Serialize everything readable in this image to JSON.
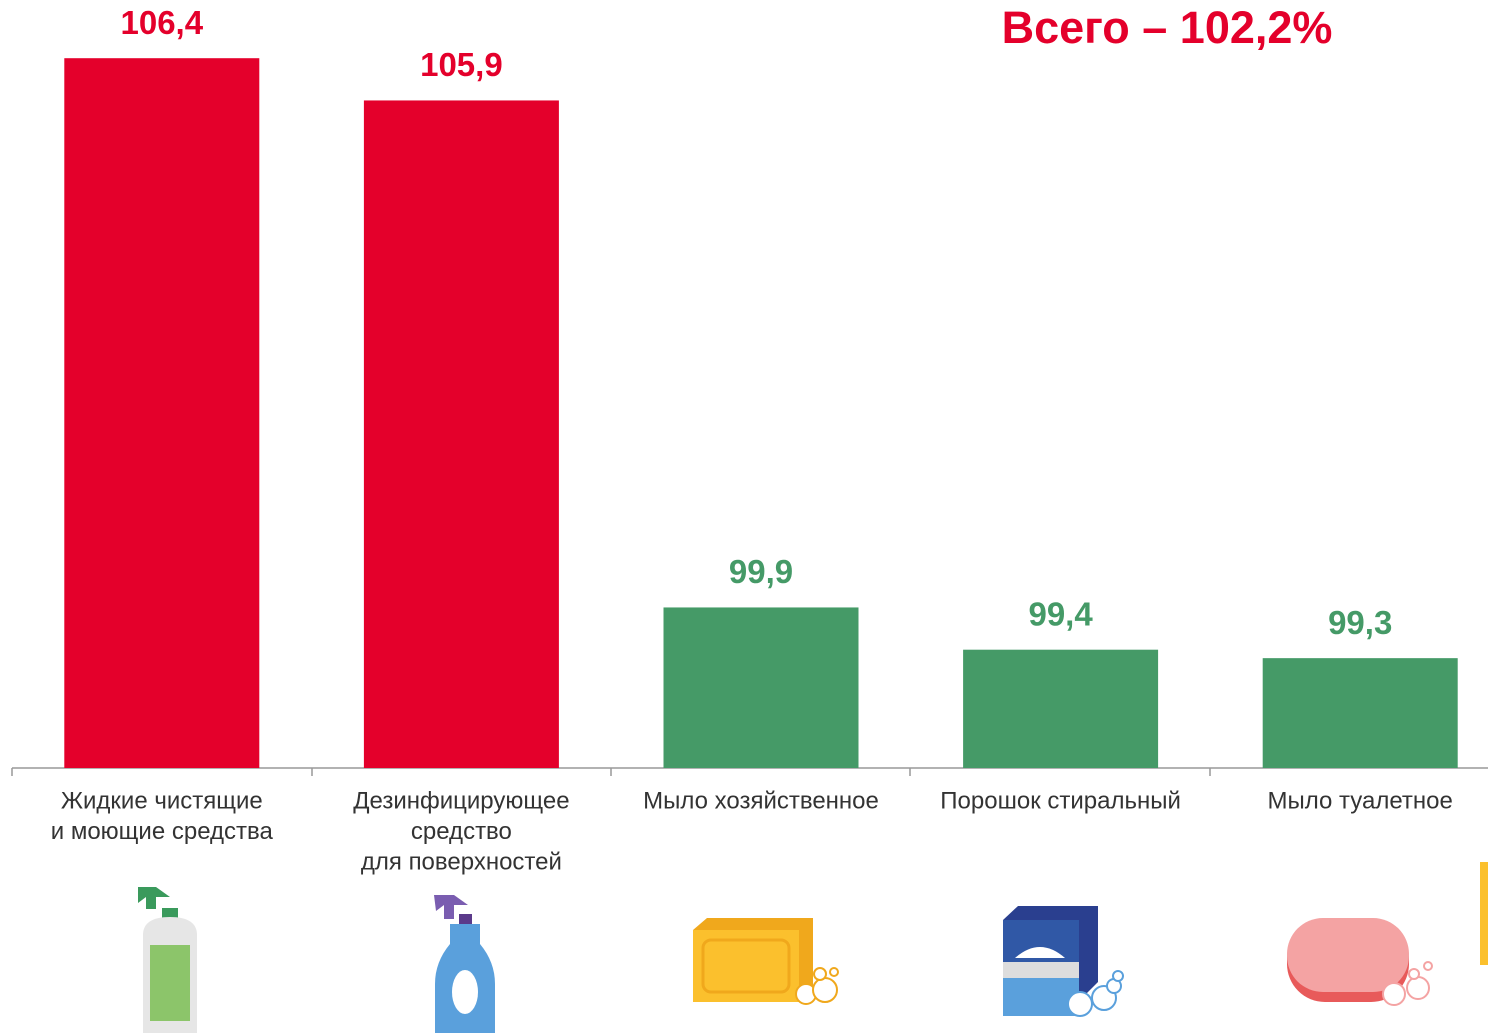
{
  "chart_data": {
    "type": "bar",
    "title": "Всего – 102,2%",
    "categories": [
      [
        "Жидкие чистящие",
        "и моющие средства"
      ],
      [
        "Дезинфицирующее",
        "средство",
        "для поверхностей"
      ],
      [
        "Мыло хозяйственное"
      ],
      [
        "Порошок стиральный"
      ],
      [
        "Мыло туалетное"
      ]
    ],
    "values": [
      106.4,
      105.9,
      99.9,
      99.4,
      99.3
    ],
    "value_labels": [
      "106,4",
      "105,9",
      "99,9",
      "99,4",
      "99,3"
    ],
    "colors": [
      "#e4002b",
      "#e4002b",
      "#459a67",
      "#459a67",
      "#459a67"
    ],
    "ylim": [
      98,
      107
    ]
  }
}
